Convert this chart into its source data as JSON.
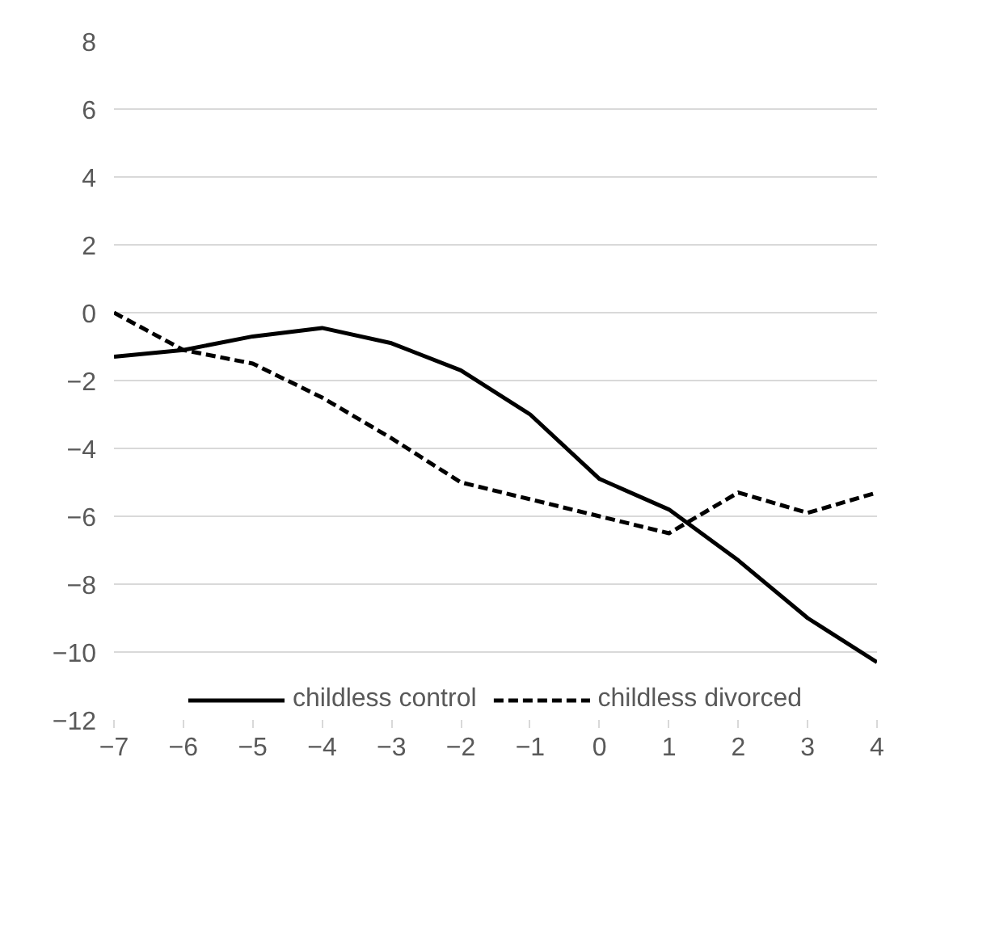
{
  "chart_data": {
    "type": "line",
    "x": [
      -7,
      -6,
      -5,
      -4,
      -3,
      -2,
      -1,
      0,
      1,
      2,
      3,
      4
    ],
    "xlim": [
      -7,
      4
    ],
    "xticks": [
      -7,
      -6,
      -5,
      -4,
      -3,
      -2,
      -1,
      0,
      1,
      2,
      3,
      4
    ],
    "ylim": [
      -12,
      8
    ],
    "yticks": [
      -12,
      -10,
      -8,
      -6,
      -4,
      -2,
      0,
      2,
      4,
      6,
      8
    ],
    "grid": "y",
    "legend": "bottom",
    "marker": "none",
    "series": [
      {
        "name": "childless control",
        "color": "#000000",
        "line_style": "solid",
        "values": [
          -1.3,
          -1.1,
          -0.7,
          -0.45,
          -0.9,
          -1.7,
          -3.0,
          -4.9,
          -5.8,
          -7.3,
          -9.0,
          -10.3
        ]
      },
      {
        "name": "childless divorced",
        "color": "#000000",
        "line_style": "dashed",
        "values": [
          0,
          -1.1,
          -1.5,
          -2.5,
          -3.7,
          -5.0,
          -5.5,
          -6.0,
          -6.5,
          -5.3,
          -5.9,
          -5.3
        ]
      }
    ]
  }
}
